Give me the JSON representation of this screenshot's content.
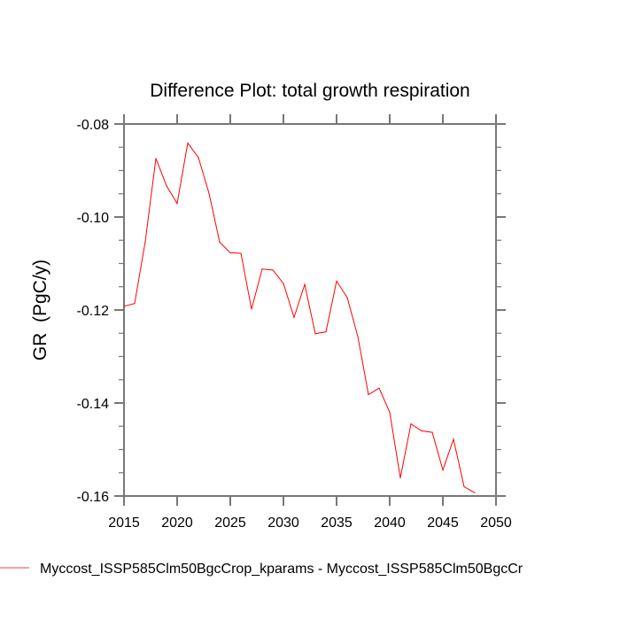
{
  "chart_data": {
    "type": "line",
    "title": "Difference Plot: total growth respiration",
    "xlabel": "",
    "ylabel": "GR  (PgC/y)",
    "xlim": [
      2015,
      2050
    ],
    "ylim": [
      -0.16,
      -0.08
    ],
    "x_ticks": [
      2015,
      2020,
      2025,
      2030,
      2035,
      2040,
      2045,
      2050
    ],
    "x_tick_labels": [
      "2015",
      "2020",
      "2025",
      "2030",
      "2035",
      "2040",
      "2045",
      "2050"
    ],
    "y_ticks": [
      -0.08,
      -0.1,
      -0.12,
      -0.14,
      -0.16
    ],
    "y_tick_labels": [
      "-0.08",
      "-0.10",
      "-0.12",
      "-0.14",
      "-0.16"
    ],
    "y_minor_step": 0.005,
    "grid": false,
    "legend_position": "bottom-left",
    "series": [
      {
        "name": "Myccost_ISSP585Clm50BgcCrop_kparams - Myccost_ISSP585Clm50BgcCr",
        "color": "#ff0000",
        "legend_color": "#f08080",
        "x": [
          2015,
          2016,
          2017,
          2018,
          2019,
          2020,
          2021,
          2022,
          2023,
          2024,
          2025,
          2026,
          2027,
          2028,
          2029,
          2030,
          2031,
          2032,
          2033,
          2034,
          2035,
          2036,
          2037,
          2038,
          2039,
          2040,
          2041,
          2042,
          2043,
          2044,
          2045,
          2046,
          2047,
          2048
        ],
        "values": [
          -0.1192,
          -0.1186,
          -0.1053,
          -0.0874,
          -0.0933,
          -0.0971,
          -0.0841,
          -0.0872,
          -0.0949,
          -0.1054,
          -0.1077,
          -0.1078,
          -0.1198,
          -0.1112,
          -0.1114,
          -0.1143,
          -0.1216,
          -0.1145,
          -0.1251,
          -0.1247,
          -0.1138,
          -0.1173,
          -0.1257,
          -0.1382,
          -0.1368,
          -0.142,
          -0.1561,
          -0.1445,
          -0.146,
          -0.1463,
          -0.1544,
          -0.1478,
          -0.158,
          -0.1593
        ]
      }
    ]
  },
  "colors": {
    "axis": "#777777"
  }
}
